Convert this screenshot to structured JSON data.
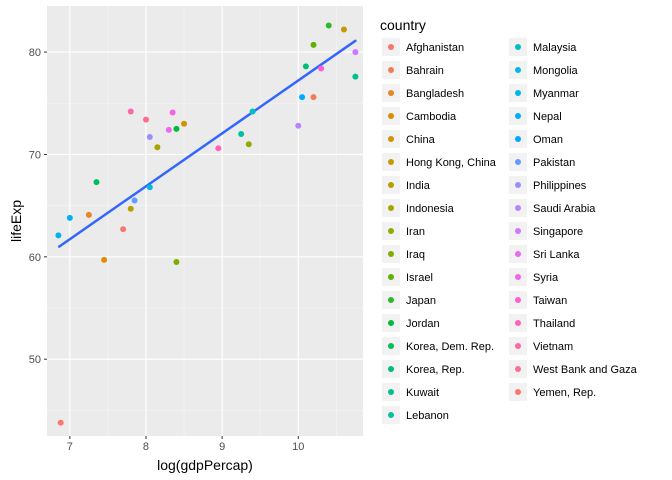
{
  "chart_data": {
    "type": "scatter",
    "xlabel": "log(gdpPercap)",
    "ylabel": "lifeExp",
    "xlim": [
      6.7,
      10.85
    ],
    "ylim": [
      42.5,
      84.5
    ],
    "x_ticks": [
      7,
      8,
      9,
      10
    ],
    "y_ticks": [
      50,
      60,
      70,
      80
    ],
    "grid": true,
    "legend_title": "country",
    "legend_placement": "right",
    "regression_line": {
      "color": "#3366FF",
      "x": [
        6.86,
        10.75
      ],
      "y": [
        61.0,
        81.1
      ]
    },
    "series": [
      {
        "name": "Afghanistan",
        "color": "#F8766D",
        "x": 6.88,
        "y": 43.8
      },
      {
        "name": "Bahrain",
        "color": "#F17E4F",
        "x": 10.2,
        "y": 75.6
      },
      {
        "name": "Bangladesh",
        "color": "#E88526",
        "x": 7.25,
        "y": 64.1
      },
      {
        "name": "Cambodia",
        "color": "#DE8C00",
        "x": 7.45,
        "y": 59.7
      },
      {
        "name": "China",
        "color": "#D39200",
        "x": 8.5,
        "y": 73.0
      },
      {
        "name": "Hong Kong, China",
        "color": "#C69900",
        "x": 10.6,
        "y": 82.2
      },
      {
        "name": "India",
        "color": "#B79F00",
        "x": 7.8,
        "y": 64.7
      },
      {
        "name": "Indonesia",
        "color": "#A7A400",
        "x": 8.15,
        "y": 70.7
      },
      {
        "name": "Iran",
        "color": "#93AA00",
        "x": 9.35,
        "y": 71.0
      },
      {
        "name": "Iraq",
        "color": "#7CAE00",
        "x": 8.4,
        "y": 59.5
      },
      {
        "name": "Israel",
        "color": "#5EB300",
        "x": 10.2,
        "y": 80.7
      },
      {
        "name": "Japan",
        "color": "#2EB82E",
        "x": 10.4,
        "y": 82.6
      },
      {
        "name": "Jordan",
        "color": "#00BA38",
        "x": 8.4,
        "y": 72.5
      },
      {
        "name": "Korea, Dem. Rep.",
        "color": "#00BC59",
        "x": 7.35,
        "y": 67.3
      },
      {
        "name": "Korea, Rep.",
        "color": "#00BE75",
        "x": 10.1,
        "y": 78.6
      },
      {
        "name": "Kuwait",
        "color": "#00C08B",
        "x": 10.75,
        "y": 77.6
      },
      {
        "name": "Lebanon",
        "color": "#00C19F",
        "x": 9.25,
        "y": 72.0
      },
      {
        "name": "Malaysia",
        "color": "#00BFC4",
        "x": 9.4,
        "y": 74.2
      },
      {
        "name": "Mongolia",
        "color": "#00BAE0",
        "x": 8.05,
        "y": 66.8
      },
      {
        "name": "Myanmar",
        "color": "#00B4EF",
        "x": 6.85,
        "y": 62.1
      },
      {
        "name": "Nepal",
        "color": "#00B0F6",
        "x": 7.0,
        "y": 63.8
      },
      {
        "name": "Oman",
        "color": "#00A9FF",
        "x": 10.05,
        "y": 75.6
      },
      {
        "name": "Pakistan",
        "color": "#619CFF",
        "x": 7.85,
        "y": 65.5
      },
      {
        "name": "Philippines",
        "color": "#9590FF",
        "x": 8.05,
        "y": 71.7
      },
      {
        "name": "Saudi Arabia",
        "color": "#B983FF",
        "x": 10.0,
        "y": 72.8
      },
      {
        "name": "Singapore",
        "color": "#D078FF",
        "x": 10.75,
        "y": 80.0
      },
      {
        "name": "Sri Lanka",
        "color": "#E76BF3",
        "x": 8.3,
        "y": 72.4
      },
      {
        "name": "Syria",
        "color": "#F564E3",
        "x": 8.35,
        "y": 74.1
      },
      {
        "name": "Taiwan",
        "color": "#FD61D1",
        "x": 10.3,
        "y": 78.4
      },
      {
        "name": "Thailand",
        "color": "#FF62BC",
        "x": 8.95,
        "y": 70.6
      },
      {
        "name": "Vietnam",
        "color": "#FF66A8",
        "x": 7.8,
        "y": 74.2
      },
      {
        "name": "West Bank and Gaza",
        "color": "#FF6C91",
        "x": 8.0,
        "y": 73.4
      },
      {
        "name": "Yemen, Rep.",
        "color": "#F8766D",
        "x": 7.7,
        "y": 62.7
      }
    ]
  }
}
